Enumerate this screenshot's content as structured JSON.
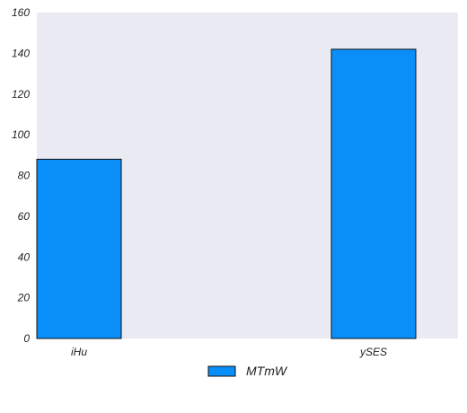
{
  "chart_data": {
    "type": "bar",
    "categories": [
      "iHu",
      "ySES"
    ],
    "series": [
      {
        "name": "MTmW",
        "values": [
          88,
          142
        ],
        "color": "#0a8ef7"
      }
    ],
    "title": "",
    "xlabel": "",
    "ylabel": "",
    "ylim": [
      0,
      160
    ],
    "yticks": [
      0,
      20,
      40,
      60,
      80,
      100,
      120,
      140,
      160
    ],
    "grid": false,
    "legend": "bottom-center",
    "plot_background": "#eaeaf2"
  }
}
